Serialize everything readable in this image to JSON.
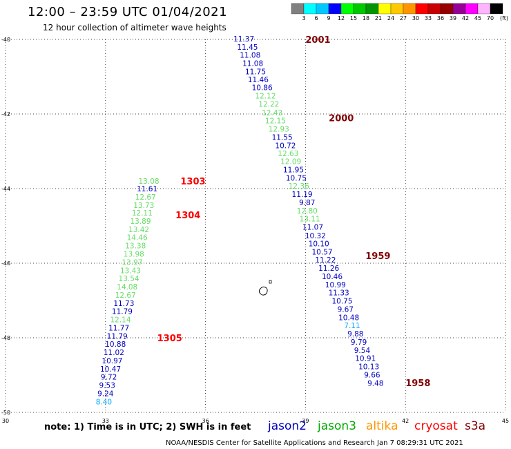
{
  "header": {
    "title": "12:00 – 23:59 UTC 01/04/2021",
    "subtitle": "12 hour collection of altimeter wave heights"
  },
  "color_scale": {
    "labels": [
      "3",
      "6",
      "9",
      "12",
      "15",
      "18",
      "21",
      "24",
      "27",
      "30",
      "33",
      "36",
      "39",
      "42",
      "45",
      "70"
    ],
    "unit": "(ft)",
    "colors": [
      "#808080",
      "#00ffff",
      "#00c8ff",
      "#0000ff",
      "#00ff00",
      "#00c800",
      "#009600",
      "#ffff00",
      "#ffc800",
      "#ff9600",
      "#ff0000",
      "#c80000",
      "#960000",
      "#960096",
      "#ff00ff",
      "#ffb4ff",
      "#000000"
    ]
  },
  "axes": {
    "lon_labels": [
      "30",
      "33",
      "36",
      "39",
      "42",
      "45"
    ],
    "lat_labels": [
      "-40",
      "-42",
      "-44",
      "-46",
      "-48",
      "-50"
    ],
    "lon_range": [
      30,
      45
    ],
    "lat_range": [
      -40,
      -50
    ]
  },
  "tracks": [
    {
      "satellite": "jason3",
      "passes": [
        {
          "time_label": "2001",
          "time_color": "#800000",
          "lon": 39.0,
          "lat": -40.0
        },
        {
          "time_label": "2000",
          "time_color": "#800000",
          "lon": 39.7,
          "lat": -42.1
        },
        {
          "time_label": "1959",
          "time_color": "#800000",
          "lon": 40.8,
          "lat": -45.8
        },
        {
          "time_label": "1958",
          "time_color": "#800000",
          "lon": 42.0,
          "lat": -49.2
        }
      ],
      "points": [
        {
          "v": "11.37",
          "c": "#0000c0",
          "lon": 37.15,
          "lat": -39.98
        },
        {
          "v": "11.45",
          "c": "#0000c0",
          "lon": 37.26,
          "lat": -40.2
        },
        {
          "v": "11.08",
          "c": "#0000c0",
          "lon": 37.34,
          "lat": -40.42
        },
        {
          "v": "11.08",
          "c": "#0000c0",
          "lon": 37.42,
          "lat": -40.64
        },
        {
          "v": "11.75",
          "c": "#0000c0",
          "lon": 37.5,
          "lat": -40.86
        },
        {
          "v": "11.46",
          "c": "#0000c0",
          "lon": 37.58,
          "lat": -41.07
        },
        {
          "v": "10.86",
          "c": "#0000c0",
          "lon": 37.7,
          "lat": -41.29
        },
        {
          "v": "12.12",
          "c": "#66dd66",
          "lon": 37.8,
          "lat": -41.51
        },
        {
          "v": "12.22",
          "c": "#66dd66",
          "lon": 37.9,
          "lat": -41.73
        },
        {
          "v": "12.43",
          "c": "#66dd66",
          "lon": 38.0,
          "lat": -41.96
        },
        {
          "v": "12.15",
          "c": "#66dd66",
          "lon": 38.1,
          "lat": -42.18
        },
        {
          "v": "12.93",
          "c": "#66dd66",
          "lon": 38.2,
          "lat": -42.4
        },
        {
          "v": "11.55",
          "c": "#0000c0",
          "lon": 38.3,
          "lat": -42.62
        },
        {
          "v": "10.72",
          "c": "#0000c0",
          "lon": 38.4,
          "lat": -42.84
        },
        {
          "v": "12.63",
          "c": "#66dd66",
          "lon": 38.48,
          "lat": -43.06
        },
        {
          "v": "12.09",
          "c": "#66dd66",
          "lon": 38.56,
          "lat": -43.27
        },
        {
          "v": "11.95",
          "c": "#0000c0",
          "lon": 38.64,
          "lat": -43.49
        },
        {
          "v": "10.75",
          "c": "#0000c0",
          "lon": 38.72,
          "lat": -43.71
        },
        {
          "v": "12.36",
          "c": "#66dd66",
          "lon": 38.8,
          "lat": -43.93
        },
        {
          "v": "11.19",
          "c": "#0000c0",
          "lon": 38.9,
          "lat": -44.15
        },
        {
          "v": "9.87",
          "c": "#0000c0",
          "lon": 39.05,
          "lat": -44.37
        },
        {
          "v": "12.80",
          "c": "#66dd66",
          "lon": 39.05,
          "lat": -44.59
        },
        {
          "v": "13.11",
          "c": "#66dd66",
          "lon": 39.13,
          "lat": -44.81
        },
        {
          "v": "11.07",
          "c": "#0000c0",
          "lon": 39.22,
          "lat": -45.03
        },
        {
          "v": "10.32",
          "c": "#0000c0",
          "lon": 39.3,
          "lat": -45.26
        },
        {
          "v": "10.10",
          "c": "#0000c0",
          "lon": 39.4,
          "lat": -45.47
        },
        {
          "v": "10.57",
          "c": "#0000c0",
          "lon": 39.5,
          "lat": -45.69
        },
        {
          "v": "11.22",
          "c": "#0000c0",
          "lon": 39.6,
          "lat": -45.91
        },
        {
          "v": "11.26",
          "c": "#0000c0",
          "lon": 39.7,
          "lat": -46.13
        },
        {
          "v": "10.46",
          "c": "#0000c0",
          "lon": 39.8,
          "lat": -46.35
        },
        {
          "v": "10.99",
          "c": "#0000c0",
          "lon": 39.9,
          "lat": -46.57
        },
        {
          "v": "11.33",
          "c": "#0000c0",
          "lon": 40.0,
          "lat": -46.79
        },
        {
          "v": "10.75",
          "c": "#0000c0",
          "lon": 40.1,
          "lat": -47.01
        },
        {
          "v": "9.67",
          "c": "#0000c0",
          "lon": 40.2,
          "lat": -47.23
        },
        {
          "v": "10.48",
          "c": "#0000c0",
          "lon": 40.3,
          "lat": -47.45
        },
        {
          "v": "7.11",
          "c": "#00a8ff",
          "lon": 40.4,
          "lat": -47.67
        },
        {
          "v": "9.88",
          "c": "#0000c0",
          "lon": 40.5,
          "lat": -47.89
        },
        {
          "v": "9.79",
          "c": "#0000c0",
          "lon": 40.6,
          "lat": -48.11
        },
        {
          "v": "9.54",
          "c": "#0000c0",
          "lon": 40.7,
          "lat": -48.33
        },
        {
          "v": "10.91",
          "c": "#0000c0",
          "lon": 40.8,
          "lat": -48.55
        },
        {
          "v": "10.13",
          "c": "#0000c0",
          "lon": 40.9,
          "lat": -48.77
        },
        {
          "v": "9.66",
          "c": "#0000c0",
          "lon": 41.0,
          "lat": -48.99
        },
        {
          "v": "9.48",
          "c": "#0000c0",
          "lon": 41.1,
          "lat": -49.21
        }
      ]
    },
    {
      "satellite": "jason2",
      "passes": [
        {
          "time_label": "1303",
          "time_color": "#ff0000",
          "lon": 35.25,
          "lat": -43.8
        },
        {
          "time_label": "1304",
          "time_color": "#ff0000",
          "lon": 35.1,
          "lat": -44.7
        },
        {
          "time_label": "1305",
          "time_color": "#ff0000",
          "lon": 34.55,
          "lat": -48.0
        }
      ],
      "points": [
        {
          "v": "13.08",
          "c": "#66dd66",
          "lon": 34.3,
          "lat": -43.8
        },
        {
          "v": "11.61",
          "c": "#0000c0",
          "lon": 34.25,
          "lat": -44.0
        },
        {
          "v": "12.67",
          "c": "#66dd66",
          "lon": 34.2,
          "lat": -44.22
        },
        {
          "v": "13.73",
          "c": "#66dd66",
          "lon": 34.15,
          "lat": -44.44
        },
        {
          "v": "12.11",
          "c": "#66dd66",
          "lon": 34.1,
          "lat": -44.65
        },
        {
          "v": "13.89",
          "c": "#66dd66",
          "lon": 34.05,
          "lat": -44.87
        },
        {
          "v": "13.42",
          "c": "#66dd66",
          "lon": 34.0,
          "lat": -45.09
        },
        {
          "v": "14.46",
          "c": "#66dd66",
          "lon": 33.95,
          "lat": -45.31
        },
        {
          "v": "13.38",
          "c": "#66dd66",
          "lon": 33.9,
          "lat": -45.53
        },
        {
          "v": "13.98",
          "c": "#66dd66",
          "lon": 33.85,
          "lat": -45.75
        },
        {
          "v": "13.97",
          "c": "#66dd66",
          "lon": 33.8,
          "lat": -45.97
        },
        {
          "v": "13.43",
          "c": "#66dd66",
          "lon": 33.75,
          "lat": -46.19
        },
        {
          "v": "13.54",
          "c": "#66dd66",
          "lon": 33.7,
          "lat": -46.41
        },
        {
          "v": "14.08",
          "c": "#66dd66",
          "lon": 33.65,
          "lat": -46.63
        },
        {
          "v": "12.67",
          "c": "#66dd66",
          "lon": 33.6,
          "lat": -46.85
        },
        {
          "v": "11.73",
          "c": "#0000c0",
          "lon": 33.55,
          "lat": -47.07
        },
        {
          "v": "11.79",
          "c": "#0000c0",
          "lon": 33.5,
          "lat": -47.29
        },
        {
          "v": "12.14",
          "c": "#66dd66",
          "lon": 33.45,
          "lat": -47.51
        },
        {
          "v": "11.77",
          "c": "#0000c0",
          "lon": 33.4,
          "lat": -47.73
        },
        {
          "v": "11.79",
          "c": "#0000c0",
          "lon": 33.35,
          "lat": -47.95
        },
        {
          "v": "10.88",
          "c": "#0000c0",
          "lon": 33.3,
          "lat": -48.17
        },
        {
          "v": "11.02",
          "c": "#0000c0",
          "lon": 33.25,
          "lat": -48.39
        },
        {
          "v": "10.97",
          "c": "#0000c0",
          "lon": 33.2,
          "lat": -48.61
        },
        {
          "v": "10.47",
          "c": "#0000c0",
          "lon": 33.15,
          "lat": -48.83
        },
        {
          "v": "9.72",
          "c": "#0000c0",
          "lon": 33.1,
          "lat": -49.05
        },
        {
          "v": "9.53",
          "c": "#0000c0",
          "lon": 33.05,
          "lat": -49.27
        },
        {
          "v": "9.24",
          "c": "#0000c0",
          "lon": 33.0,
          "lat": -49.49
        },
        {
          "v": "8.40",
          "c": "#00a8ff",
          "lon": 32.95,
          "lat": -49.71
        }
      ]
    }
  ],
  "footer": {
    "note": "note:  1) Time is in UTC;  2) SWH is in feet",
    "satellites": [
      {
        "name": "jason2",
        "color": "#0000c0"
      },
      {
        "name": "jason3",
        "color": "#00aa00"
      },
      {
        "name": "altika",
        "color": "#ff9600"
      },
      {
        "name": "cryosat",
        "color": "#ff0000"
      },
      {
        "name": "s3a",
        "color": "#800000"
      }
    ],
    "credit": "NOAA/NESDIS Center for Satellite Applications and Research     Jan  7 08:29:31 UTC 2021"
  }
}
